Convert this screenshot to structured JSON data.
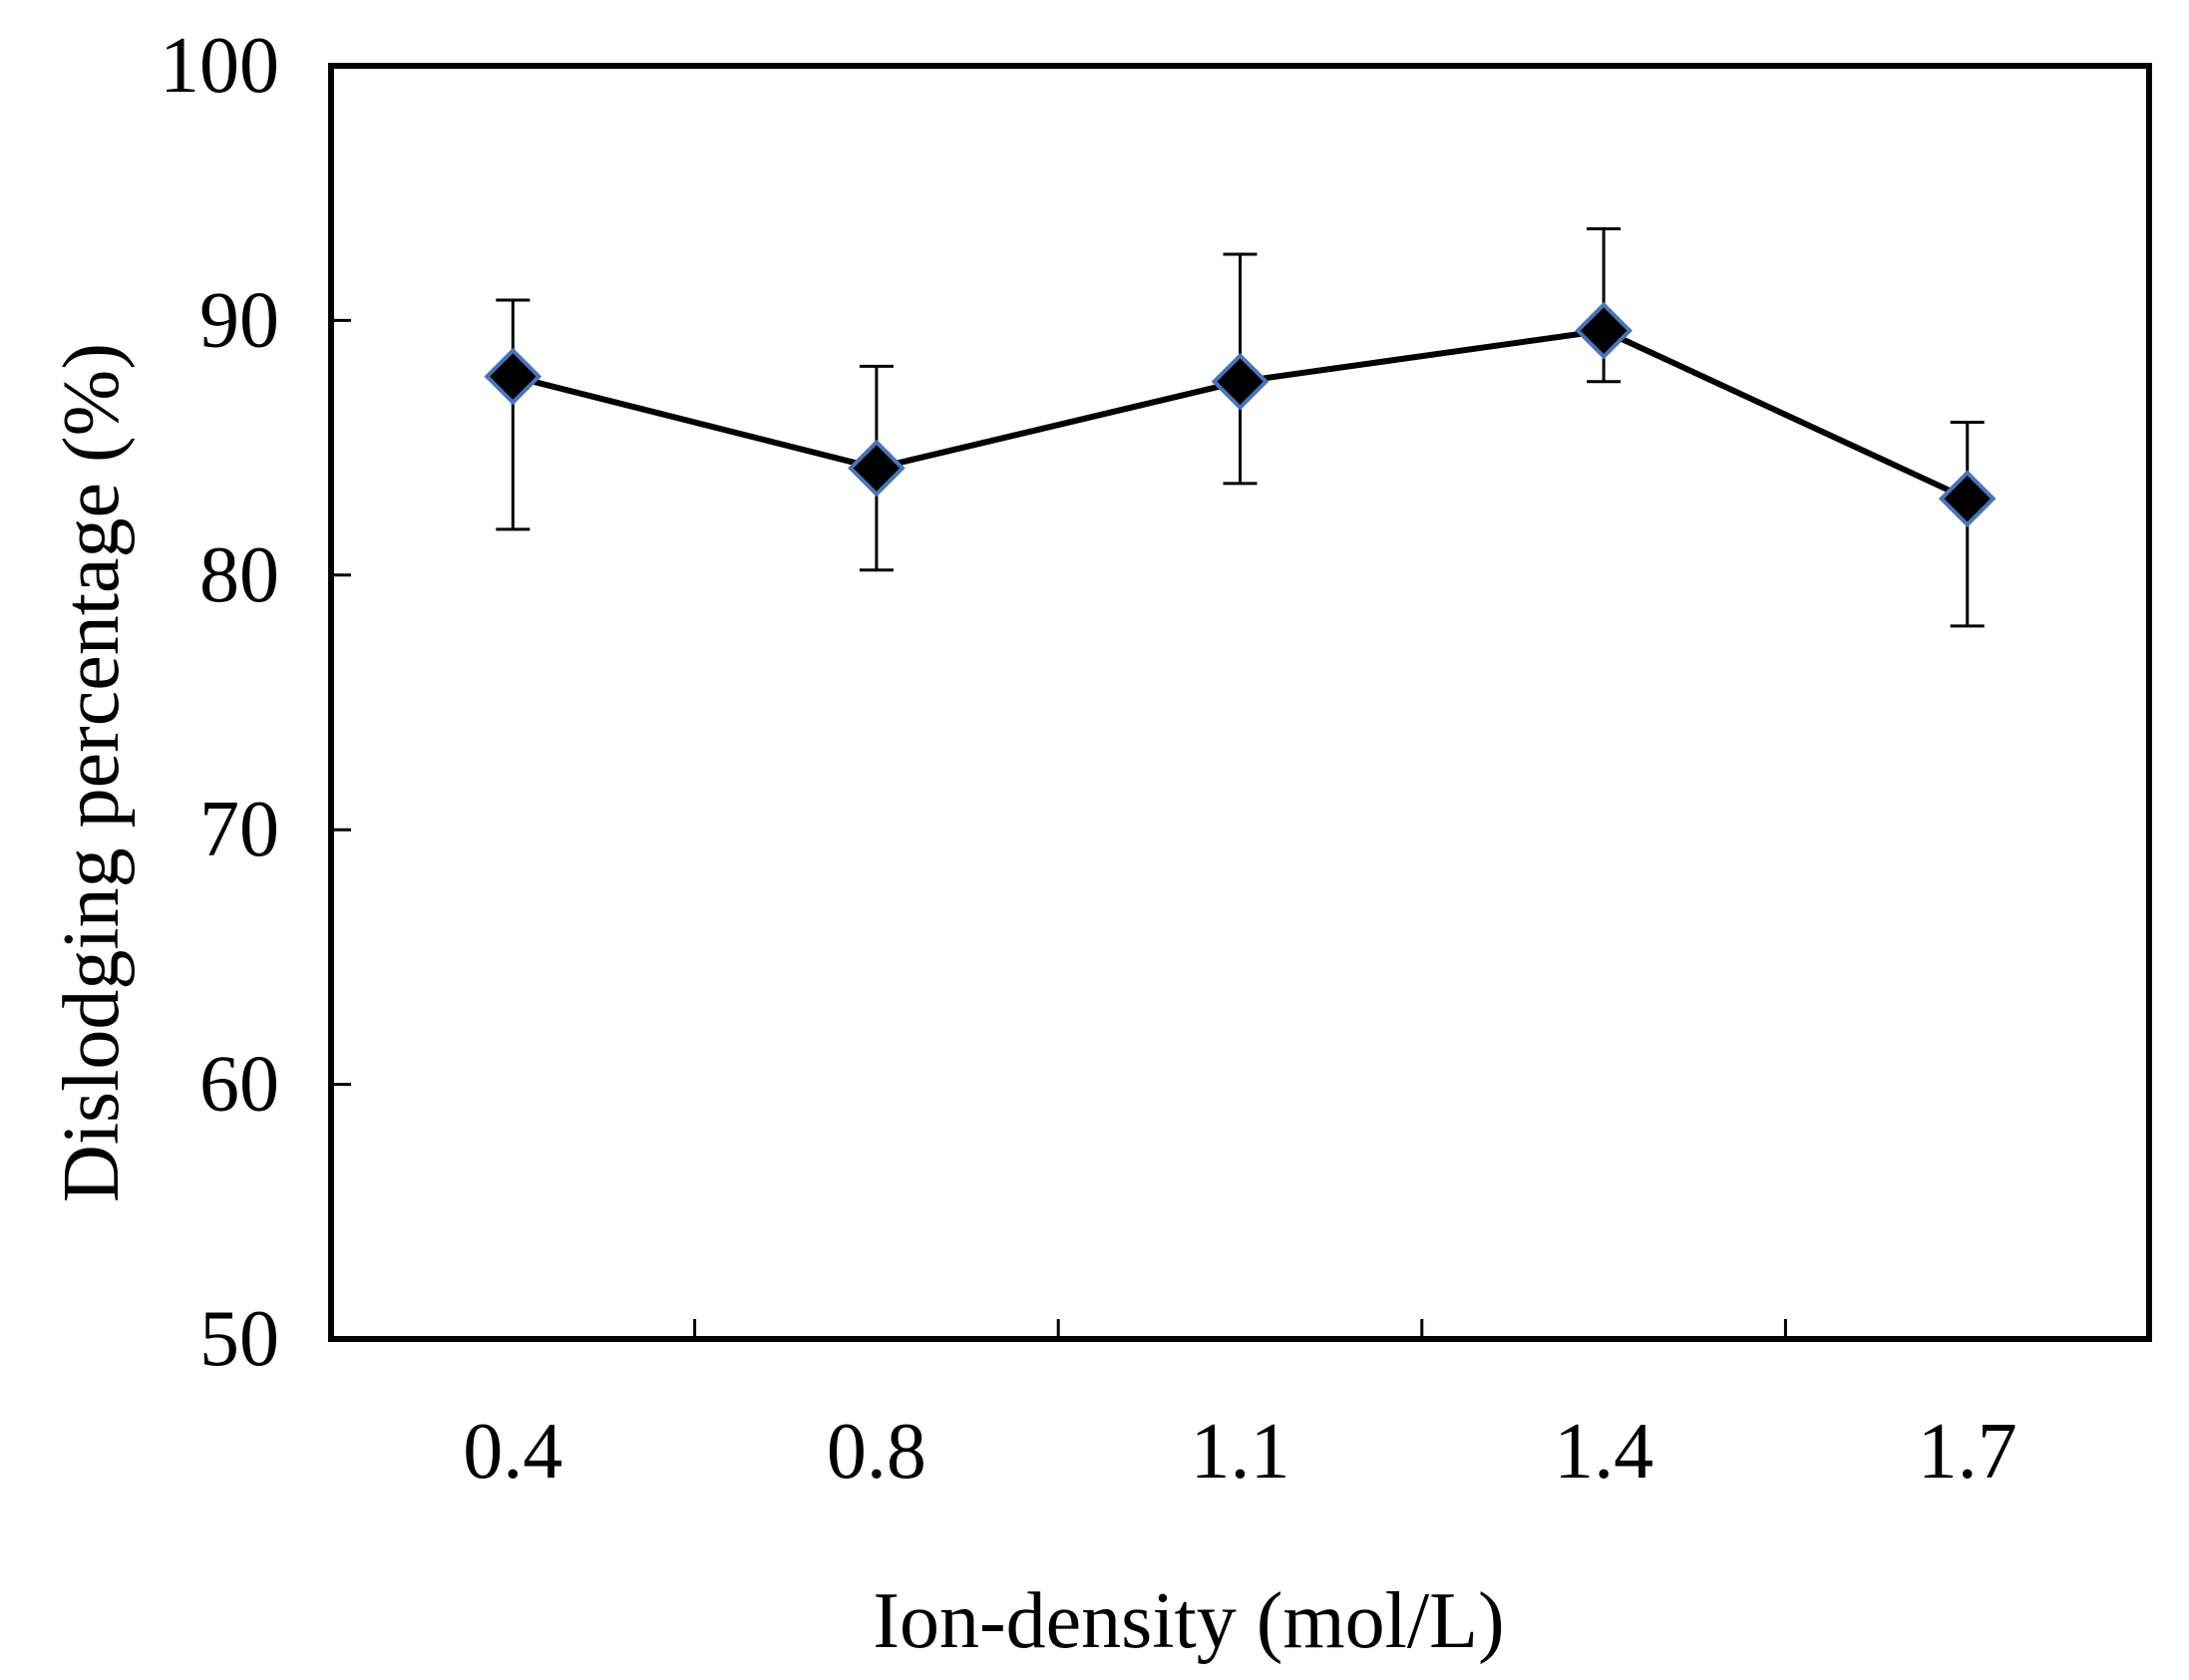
{
  "chart_data": {
    "type": "line",
    "title": "",
    "xlabel": "Ion-density (mol/L)",
    "ylabel": "Dislodging percentage (%)",
    "categories": [
      "0.4",
      "0.8",
      "1.1",
      "1.4",
      "1.7"
    ],
    "ylim": [
      50,
      100
    ],
    "yticks": [
      50,
      60,
      70,
      80,
      90,
      100
    ],
    "grid": false,
    "legend": "none",
    "series": [
      {
        "name": "Dislodging percentage",
        "marker": "diamond",
        "line_color": "#000000",
        "marker_fill": "#000000",
        "marker_edge": "#4a74b8",
        "values": [
          87.8,
          84.2,
          87.6,
          89.6,
          83.0
        ],
        "error_low": [
          81.8,
          80.2,
          83.6,
          87.6,
          78.0
        ],
        "error_high": [
          90.8,
          88.2,
          92.6,
          93.6,
          86.0
        ]
      }
    ]
  }
}
